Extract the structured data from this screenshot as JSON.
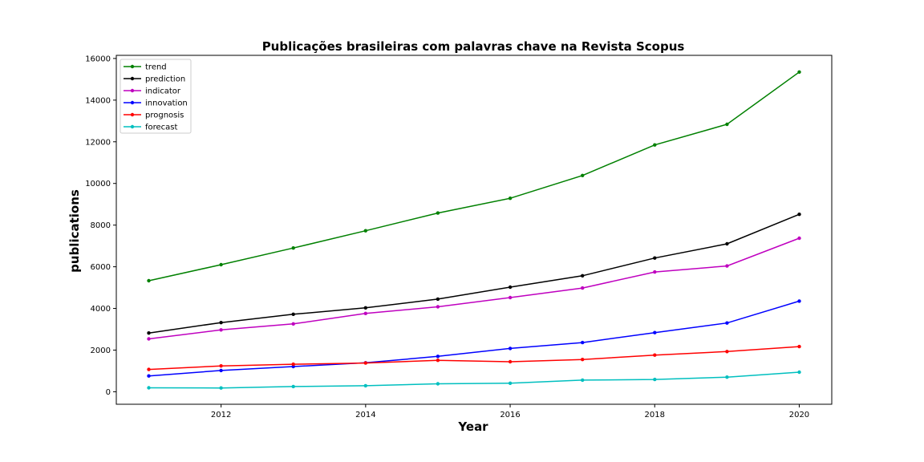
{
  "chart_data": {
    "type": "line",
    "title": "Publicações brasileiras com palavras chave na Revista Scopus",
    "xlabel": "Year",
    "ylabel": "publications",
    "x": [
      2011,
      2012,
      2013,
      2014,
      2015,
      2016,
      2017,
      2018,
      2019,
      2020
    ],
    "xlim": [
      2010.55,
      2020.45
    ],
    "ylim": [
      -600,
      16150
    ],
    "xticks": [
      2012,
      2014,
      2016,
      2018,
      2020
    ],
    "yticks": [
      0,
      2000,
      4000,
      6000,
      8000,
      10000,
      12000,
      14000,
      16000
    ],
    "grid": false,
    "legend_position": "upper-left",
    "series": [
      {
        "name": "trend",
        "color": "#008000",
        "values": [
          5330,
          6100,
          6900,
          7730,
          8580,
          9290,
          10380,
          11850,
          12840,
          15350
        ]
      },
      {
        "name": "prediction",
        "color": "#000000",
        "values": [
          2820,
          3320,
          3720,
          4030,
          4450,
          5020,
          5570,
          6420,
          7100,
          8520
        ]
      },
      {
        "name": "indicator",
        "color": "#bf00bf",
        "values": [
          2540,
          2970,
          3260,
          3760,
          4080,
          4520,
          4980,
          5750,
          6040,
          7370
        ]
      },
      {
        "name": "innovation",
        "color": "#0000ff",
        "values": [
          760,
          1020,
          1210,
          1390,
          1700,
          2080,
          2360,
          2840,
          3300,
          4350
        ]
      },
      {
        "name": "prognosis",
        "color": "#ff0000",
        "values": [
          1070,
          1240,
          1320,
          1380,
          1510,
          1440,
          1550,
          1760,
          1930,
          2170
        ]
      },
      {
        "name": "forecast",
        "color": "#00bfbf",
        "values": [
          190,
          180,
          250,
          290,
          380,
          410,
          560,
          590,
          700,
          940
        ]
      }
    ]
  }
}
